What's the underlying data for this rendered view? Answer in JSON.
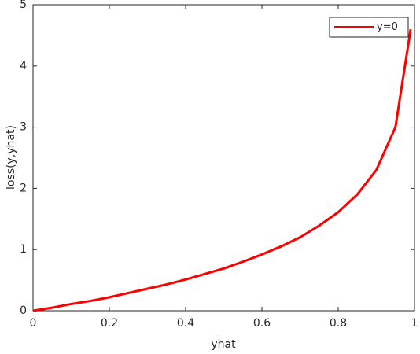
{
  "chart_data": {
    "type": "line",
    "xlabel": "yhat",
    "ylabel": "loss(y,yhat)",
    "x": [
      0,
      0.05,
      0.1,
      0.15,
      0.2,
      0.25,
      0.3,
      0.35,
      0.4,
      0.45,
      0.5,
      0.55,
      0.6,
      0.65,
      0.7,
      0.75,
      0.8,
      0.85,
      0.9,
      0.95,
      0.99
    ],
    "series": [
      {
        "name": "y=0",
        "color": "#ff0000",
        "values": [
          0,
          0.05,
          0.11,
          0.16,
          0.22,
          0.29,
          0.36,
          0.43,
          0.51,
          0.6,
          0.69,
          0.8,
          0.92,
          1.05,
          1.2,
          1.39,
          1.61,
          1.9,
          2.3,
          3.0,
          4.6
        ]
      }
    ],
    "xlim": [
      0,
      1
    ],
    "xticks": [
      0,
      0.2,
      0.4,
      0.6,
      0.8,
      1
    ],
    "ylim": [
      0,
      5
    ],
    "yticks": [
      0,
      1,
      2,
      3,
      4,
      5
    ],
    "grid": false,
    "legend": "northeast"
  }
}
